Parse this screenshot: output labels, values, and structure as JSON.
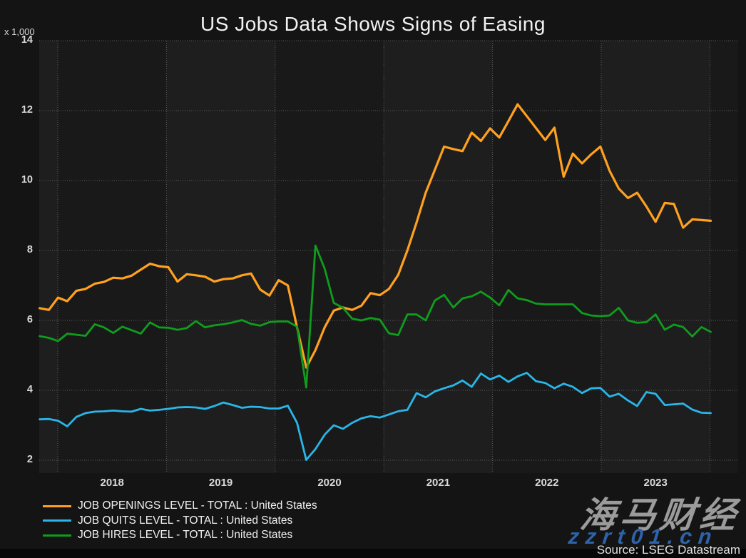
{
  "title": "US Jobs Data Shows Signs of Easing",
  "axis_unit_label": "x 1,000",
  "source": "Source: LSEG Datastream",
  "watermark": {
    "brand": "海马财经",
    "url": "zzrt01.cn",
    "brand_color": "#9b9b9b",
    "url_color": "#2e63a9"
  },
  "colors": {
    "page_background": "#141414",
    "plot_band_light": "#1e1e1e",
    "plot_band_dark": "#191919",
    "gridline": "#6a6a6a",
    "tick_text": "#d9d9d9"
  },
  "chart_data": {
    "type": "line",
    "title": "US Jobs Data Shows Signs of Easing",
    "ylabel": "x 1,000",
    "xlabel": "",
    "frequency": "monthly",
    "x_start": "2017-11",
    "x_end": "2023-12",
    "x_tick_labels": [
      "2018",
      "2019",
      "2020",
      "2021",
      "2022",
      "2023"
    ],
    "y_ticks": [
      2,
      4,
      6,
      8,
      10,
      12,
      14
    ],
    "ylim": [
      2,
      14
    ],
    "grid": "dotted",
    "legend_position": "bottom-left",
    "series": [
      {
        "name": "JOB OPENINGS LEVEL - TOTAL : United States",
        "color": "#ffa11f",
        "values": [
          6.35,
          6.3,
          6.65,
          6.55,
          6.85,
          6.9,
          7.05,
          7.1,
          7.22,
          7.2,
          7.28,
          7.45,
          7.62,
          7.55,
          7.52,
          7.11,
          7.32,
          7.29,
          7.25,
          7.11,
          7.18,
          7.2,
          7.29,
          7.34,
          6.88,
          6.71,
          7.15,
          7.0,
          5.8,
          4.65,
          5.15,
          5.8,
          6.28,
          6.37,
          6.3,
          6.42,
          6.78,
          6.72,
          6.9,
          7.3,
          8.0,
          8.8,
          9.65,
          10.31,
          10.97,
          10.9,
          10.84,
          11.37,
          11.13,
          11.49,
          11.23,
          11.7,
          12.18,
          11.84,
          11.5,
          11.16,
          11.51,
          10.11,
          10.77,
          10.49,
          10.75,
          10.97,
          10.28,
          9.77,
          9.5,
          9.65,
          9.26,
          8.82,
          9.36,
          9.33,
          8.65,
          8.89,
          8.87,
          8.85
        ]
      },
      {
        "name": "JOB QUITS LEVEL - TOTAL : United States",
        "color": "#29b6e8",
        "values": [
          3.17,
          3.18,
          3.13,
          2.97,
          3.24,
          3.35,
          3.39,
          3.4,
          3.42,
          3.4,
          3.39,
          3.47,
          3.42,
          3.44,
          3.47,
          3.51,
          3.52,
          3.51,
          3.47,
          3.55,
          3.65,
          3.58,
          3.5,
          3.53,
          3.52,
          3.48,
          3.48,
          3.56,
          3.07,
          2.01,
          2.32,
          2.73,
          3.0,
          2.9,
          3.07,
          3.2,
          3.26,
          3.22,
          3.31,
          3.4,
          3.44,
          3.92,
          3.8,
          3.97,
          4.06,
          4.14,
          4.28,
          4.1,
          4.48,
          4.31,
          4.42,
          4.24,
          4.4,
          4.5,
          4.26,
          4.21,
          4.06,
          4.19,
          4.1,
          3.92,
          4.06,
          4.07,
          3.82,
          3.9,
          3.71,
          3.55,
          3.95,
          3.9,
          3.58,
          3.6,
          3.62,
          3.45,
          3.36,
          3.35
        ]
      },
      {
        "name": "JOB HIRES LEVEL - TOTAL : United States",
        "color": "#0f9d1d",
        "values": [
          5.55,
          5.5,
          5.41,
          5.62,
          5.59,
          5.56,
          5.89,
          5.8,
          5.64,
          5.82,
          5.72,
          5.62,
          5.94,
          5.8,
          5.79,
          5.73,
          5.78,
          5.98,
          5.8,
          5.86,
          5.89,
          5.94,
          6.01,
          5.9,
          5.85,
          5.95,
          5.97,
          5.97,
          5.82,
          4.08,
          8.14,
          7.48,
          6.5,
          6.36,
          6.05,
          6.0,
          6.07,
          6.02,
          5.63,
          5.58,
          6.17,
          6.17,
          6.0,
          6.57,
          6.73,
          6.37,
          6.63,
          6.69,
          6.82,
          6.65,
          6.43,
          6.87,
          6.63,
          6.58,
          6.48,
          6.46,
          6.46,
          6.46,
          6.46,
          6.21,
          6.14,
          6.12,
          6.14,
          6.36,
          6.0,
          5.93,
          5.95,
          6.17,
          5.73,
          5.88,
          5.81,
          5.54,
          5.81,
          5.67
        ]
      }
    ]
  }
}
